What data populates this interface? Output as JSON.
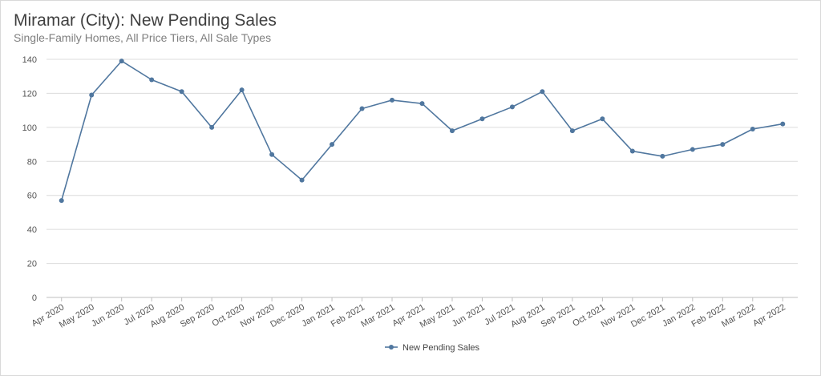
{
  "title": "Miramar (City): New Pending Sales",
  "subtitle": "Single-Family Homes, All Price Tiers, All Sale Types",
  "colors": {
    "series": "#50779f",
    "grid": "#dcdcdc",
    "axis": "#bfbfbf"
  },
  "chart_data": {
    "type": "line",
    "title": "Miramar (City): New Pending Sales",
    "subtitle": "Single-Family Homes, All Price Tiers, All Sale Types",
    "xlabel": "",
    "ylabel": "",
    "ylim": [
      0,
      140
    ],
    "yticks": [
      0,
      20,
      40,
      60,
      80,
      100,
      120,
      140
    ],
    "grid": true,
    "legend": "bottom-center",
    "categories": [
      "Apr 2020",
      "May 2020",
      "Jun 2020",
      "Jul 2020",
      "Aug 2020",
      "Sep 2020",
      "Oct 2020",
      "Nov 2020",
      "Dec 2020",
      "Jan 2021",
      "Feb 2021",
      "Mar 2021",
      "Apr 2021",
      "May 2021",
      "Jun 2021",
      "Jul 2021",
      "Aug 2021",
      "Sep 2021",
      "Oct 2021",
      "Nov 2021",
      "Dec 2021",
      "Jan 2022",
      "Feb 2022",
      "Mar 2022",
      "Apr 2022"
    ],
    "series": [
      {
        "name": "New Pending Sales",
        "values": [
          57,
          119,
          139,
          128,
          121,
          100,
          122,
          84,
          69,
          90,
          111,
          116,
          114,
          98,
          105,
          112,
          121,
          98,
          105,
          86,
          83,
          87,
          90,
          99,
          102
        ]
      }
    ]
  }
}
